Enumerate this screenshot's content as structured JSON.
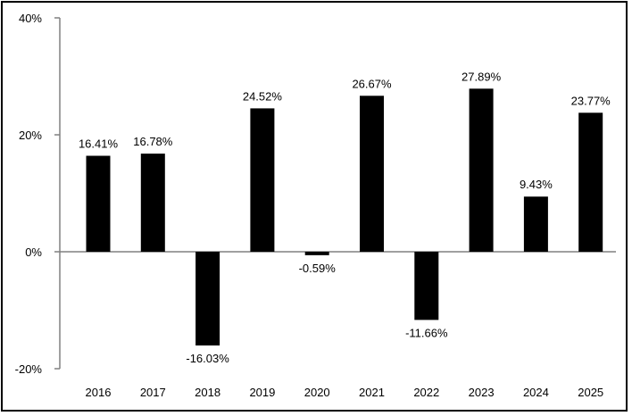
{
  "chart_data": {
    "type": "bar",
    "categories": [
      "2016",
      "2017",
      "2018",
      "2019",
      "2020",
      "2021",
      "2022",
      "2023",
      "2024",
      "2025"
    ],
    "values": [
      16.41,
      16.78,
      -16.03,
      24.52,
      -0.59,
      26.67,
      -11.66,
      27.89,
      9.43,
      23.77
    ],
    "data_labels": [
      "16.41%",
      "16.78%",
      "-16.03%",
      "24.52%",
      "-0.59%",
      "26.67%",
      "-11.66%",
      "27.89%",
      "9.43%",
      "23.77%"
    ],
    "y_ticks": [
      40,
      20,
      0,
      -20
    ],
    "y_tick_labels": [
      "40%",
      "20%",
      "0%",
      "-20%"
    ],
    "ylim": [
      -20,
      40
    ],
    "title": "",
    "xlabel": "",
    "ylabel": "",
    "grid": false,
    "legend": "none",
    "bar_color": "#000000",
    "axis_color": "#808080"
  }
}
